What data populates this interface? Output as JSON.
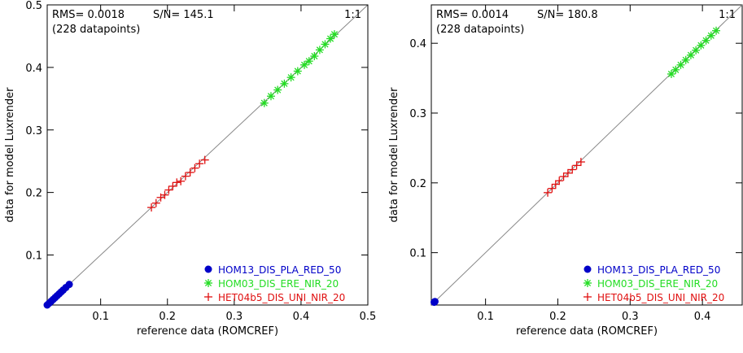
{
  "chart_data": [
    {
      "type": "scatter",
      "title": "",
      "xlabel": "reference data (ROMCREF)",
      "ylabel": "data for model Luxrender",
      "xlim": [
        0.02,
        0.5
      ],
      "ylim": [
        0.02,
        0.5
      ],
      "xticks": [
        0.1,
        0.2,
        0.3,
        0.4,
        0.5
      ],
      "yticks": [
        0.1,
        0.2,
        0.3,
        0.4,
        0.5
      ],
      "xtick_labels": [
        "0.1",
        "0.2",
        "0.3",
        "0.4",
        "0.5"
      ],
      "ytick_labels": [
        "0.1",
        "0.2",
        "0.3",
        "0.4",
        "0.5"
      ],
      "rms_text": "RMS= 0.0018",
      "sn_text": "S/N= 145.1",
      "count_text": "(228 datapoints)",
      "identity_label": "1:1",
      "grid": false,
      "legend_position": "bottom-right",
      "series": [
        {
          "name": "HOM13_DIS_PLA_RED_50",
          "marker": "circle",
          "color": "#0000c8",
          "x": [
            0.02,
            0.023,
            0.026,
            0.029,
            0.032,
            0.035,
            0.038,
            0.041,
            0.044,
            0.048,
            0.053
          ],
          "y": [
            0.02,
            0.023,
            0.026,
            0.029,
            0.032,
            0.035,
            0.038,
            0.041,
            0.044,
            0.048,
            0.053
          ]
        },
        {
          "name": "HOM03_DIS_ERE_NIR_20",
          "marker": "asterisk",
          "color": "#22dd22",
          "x": [
            0.345,
            0.355,
            0.365,
            0.375,
            0.385,
            0.395,
            0.405,
            0.412,
            0.42,
            0.428,
            0.436,
            0.444,
            0.45
          ],
          "y": [
            0.343,
            0.354,
            0.364,
            0.374,
            0.384,
            0.394,
            0.404,
            0.41,
            0.418,
            0.428,
            0.437,
            0.446,
            0.453
          ]
        },
        {
          "name": "HET04b5_DIS_UNI_NIR_20",
          "marker": "plus",
          "color": "#e01010",
          "x": [
            0.176,
            0.183,
            0.19,
            0.196,
            0.202,
            0.208,
            0.214,
            0.22,
            0.227,
            0.234,
            0.241,
            0.248,
            0.256
          ],
          "y": [
            0.176,
            0.183,
            0.192,
            0.196,
            0.204,
            0.21,
            0.216,
            0.218,
            0.226,
            0.232,
            0.239,
            0.246,
            0.252
          ]
        }
      ]
    },
    {
      "type": "scatter",
      "title": "",
      "xlabel": "reference data (ROMCREF)",
      "ylabel": "data for model Luxrender",
      "xlim": [
        0.025,
        0.455
      ],
      "ylim": [
        0.025,
        0.455
      ],
      "xticks": [
        0.1,
        0.2,
        0.3,
        0.4
      ],
      "yticks": [
        0.1,
        0.2,
        0.3,
        0.4
      ],
      "xtick_labels": [
        "0.1",
        "0.2",
        "0.3",
        "0.4"
      ],
      "ytick_labels": [
        "0.1",
        "0.2",
        "0.3",
        "0.4"
      ],
      "rms_text": "RMS= 0.0014",
      "sn_text": "S/N= 180.8",
      "count_text": "(228 datapoints)",
      "identity_label": "1:1",
      "grid": false,
      "legend_position": "bottom-right",
      "series": [
        {
          "name": "HOM13_DIS_PLA_RED_50",
          "marker": "circle",
          "color": "#0000c8",
          "x": [
            0.029,
            0.03
          ],
          "y": [
            0.029,
            0.03
          ]
        },
        {
          "name": "HOM03_DIS_ERE_NIR_20",
          "marker": "asterisk",
          "color": "#22dd22",
          "x": [
            0.357,
            0.363,
            0.37,
            0.377,
            0.384,
            0.391,
            0.398,
            0.405,
            0.412,
            0.419
          ],
          "y": [
            0.356,
            0.362,
            0.369,
            0.376,
            0.383,
            0.39,
            0.397,
            0.404,
            0.411,
            0.418
          ]
        },
        {
          "name": "HET04b5_DIS_UNI_NIR_20",
          "marker": "plus",
          "color": "#e01010",
          "x": [
            0.186,
            0.192,
            0.197,
            0.202,
            0.208,
            0.214,
            0.22,
            0.226,
            0.232
          ],
          "y": [
            0.186,
            0.192,
            0.198,
            0.203,
            0.209,
            0.214,
            0.219,
            0.225,
            0.23
          ]
        }
      ]
    }
  ]
}
